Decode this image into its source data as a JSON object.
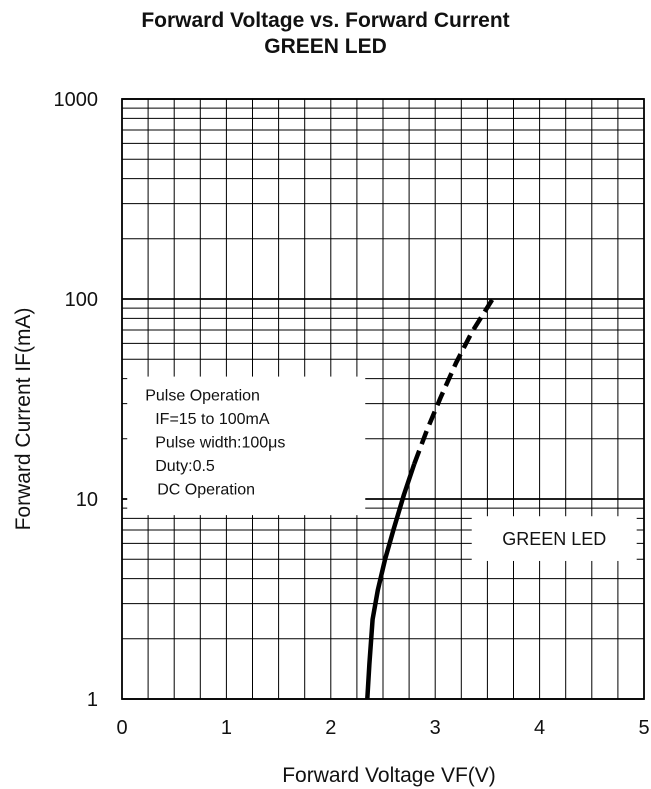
{
  "chart_data": {
    "type": "line",
    "title": "Forward Voltage vs. Forward Current",
    "subtitle": "GREEN LED",
    "xlabel": "Forward Voltage  VF(V)",
    "ylabel": "Forward Current  IF(mA)",
    "xlim": [
      0,
      5
    ],
    "ylim": [
      1,
      1000
    ],
    "yscale": "log",
    "grid": true,
    "x_ticks": [
      0,
      1,
      2,
      3,
      4,
      5
    ],
    "y_ticks": [
      1,
      10,
      100,
      1000
    ],
    "x_tick_labels": [
      "0",
      "1",
      "2",
      "3",
      "4",
      "5"
    ],
    "y_tick_labels": [
      "1",
      "10",
      "100",
      "1000"
    ],
    "series": [
      {
        "name": "DC Operation",
        "style": "solid",
        "color": "#000000",
        "x": [
          2.35,
          2.37,
          2.4,
          2.45,
          2.52,
          2.6,
          2.7,
          2.8
        ],
        "y": [
          1,
          1.5,
          2.5,
          3.5,
          5,
          7,
          10.5,
          15
        ]
      },
      {
        "name": "Pulse Operation",
        "style": "dashed",
        "color": "#000000",
        "x": [
          2.8,
          2.92,
          3.05,
          3.2,
          3.35,
          3.55
        ],
        "y": [
          15,
          22,
          32,
          48,
          68,
          100
        ]
      }
    ],
    "annotation_lines": [
      "Pulse Operation",
      "IF=15 to 100mA",
      "Pulse width:100μs",
      "Duty:0.5",
      "DC Operation"
    ],
    "legend": "GREEN LED",
    "legend_position": "lower-right"
  }
}
